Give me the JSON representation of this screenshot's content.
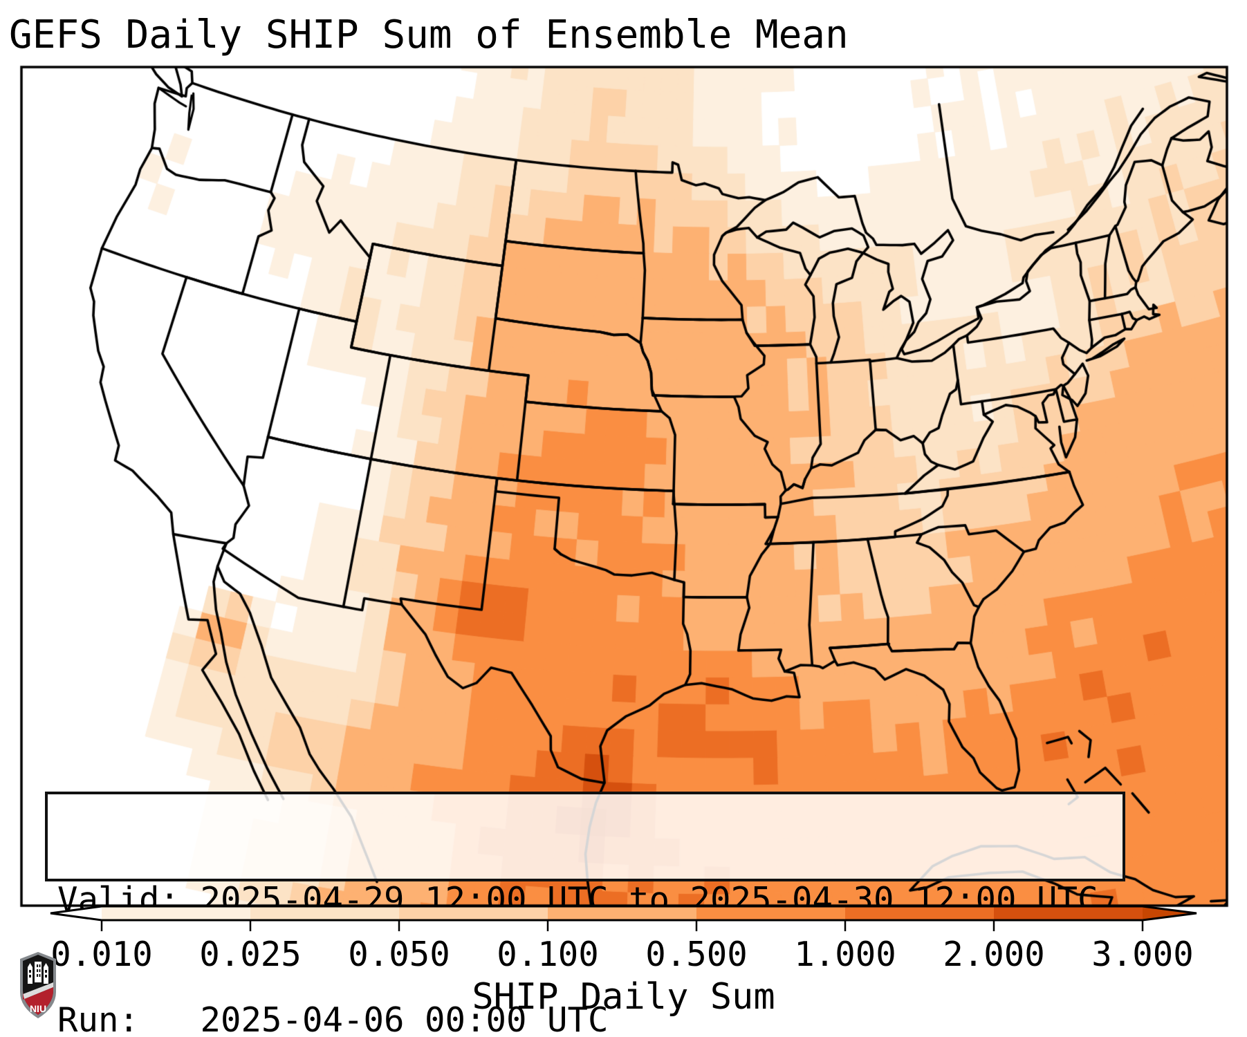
{
  "title": "GEFS Daily SHIP Sum of Ensemble Mean",
  "info_box": {
    "valid_line": "Valid: 2025-04-29 12:00 UTC to 2025-04-30 12:00 UTC",
    "run_line": "Run:   2025-04-06 00:00 UTC"
  },
  "colorbar": {
    "label": "SHIP Daily Sum",
    "tick_labels": [
      "0.010",
      "0.025",
      "0.050",
      "0.100",
      "0.500",
      "1.000",
      "2.000",
      "3.000"
    ],
    "levels": [
      0.01,
      0.025,
      0.05,
      0.1,
      0.5,
      1.0,
      2.0,
      3.0
    ],
    "segment_colors": [
      "#fdf0e0",
      "#fce3c6",
      "#fdd2a8",
      "#fdb172",
      "#fa8e42",
      "#ec6e24",
      "#d5500e"
    ],
    "under_color": "#ffffff",
    "over_color": "#c64602",
    "outline_color": "#000000"
  },
  "logo": {
    "text": "NIU",
    "red": "#b3202c",
    "black": "#151515",
    "grey": "#85898d"
  },
  "chart_data": {
    "type": "heatmap",
    "title": "GEFS Daily SHIP Sum of Ensemble Mean",
    "units": "SHIP Daily Sum",
    "legend_position": "bottom",
    "grid": {
      "lats": [
        24,
        26,
        28,
        30,
        32,
        34,
        36,
        38,
        40,
        42,
        44,
        46,
        48,
        50
      ],
      "lons": [
        -126,
        -123,
        -120,
        -117,
        -114,
        -111,
        -108,
        -105,
        -102,
        -99,
        -96,
        -93,
        -90,
        -87,
        -84,
        -81,
        -78,
        -75,
        -72,
        -69,
        -66,
        -63,
        -60
      ],
      "values": [
        [
          0,
          0,
          0,
          0,
          0,
          0.02,
          0.05,
          0.3,
          0.9,
          1.2,
          0.95,
          0.8,
          0.75,
          0.7,
          0.7,
          0.75,
          0.8,
          0.85,
          0.85,
          0.85,
          0.8,
          0.8,
          0.75
        ],
        [
          0,
          0,
          0,
          0,
          0.03,
          0.05,
          0.1,
          0.4,
          0.8,
          1.1,
          0.9,
          0.8,
          0.7,
          0.7,
          0.7,
          0.75,
          0.8,
          0.85,
          0.85,
          0.8,
          0.8,
          0.75,
          0.75
        ],
        [
          0,
          0,
          0,
          0,
          0.05,
          0.03,
          0.02,
          0.12,
          0.7,
          0.8,
          0.85,
          1.0,
          0.8,
          0.65,
          0.3,
          0.55,
          0.8,
          0.8,
          0.8,
          0.8,
          0.75,
          0.7,
          0.7
        ],
        [
          0,
          0,
          0,
          0,
          0.02,
          0.01,
          0.02,
          0.15,
          0.7,
          0.72,
          0.75,
          0.7,
          0.55,
          0.35,
          0.15,
          0.3,
          0.65,
          0.8,
          0.8,
          0.75,
          0.7,
          0.65,
          0.6
        ],
        [
          0,
          0,
          0,
          0,
          0,
          0.01,
          0.03,
          0.2,
          0.9,
          0.75,
          0.7,
          0.45,
          0.2,
          0.12,
          0.1,
          0.15,
          0.4,
          0.6,
          0.7,
          0.65,
          0.6,
          0.55,
          0.5
        ],
        [
          0,
          0,
          0,
          0,
          0,
          0.01,
          0.02,
          0.15,
          0.6,
          0.7,
          0.6,
          0.33,
          0.15,
          0.1,
          0.08,
          0.1,
          0.2,
          0.4,
          0.5,
          0.5,
          0.45,
          0.42,
          0.4
        ],
        [
          0,
          0,
          0,
          0,
          0,
          0,
          0.02,
          0.1,
          0.5,
          0.68,
          0.55,
          0.32,
          0.15,
          0.08,
          0.05,
          0.06,
          0.1,
          0.25,
          0.35,
          0.4,
          0.4,
          0.35,
          0.3
        ],
        [
          0,
          0,
          0,
          0,
          0,
          0,
          0.02,
          0.08,
          0.45,
          0.6,
          0.48,
          0.3,
          0.15,
          0.1,
          0.06,
          0.04,
          0.05,
          0.12,
          0.2,
          0.25,
          0.3,
          0.3,
          0.25
        ],
        [
          0,
          0,
          0,
          0,
          0,
          0.01,
          0.02,
          0.06,
          0.38,
          0.52,
          0.42,
          0.3,
          0.15,
          0.08,
          0.05,
          0.03,
          0.03,
          0.06,
          0.1,
          0.15,
          0.2,
          0.2,
          0.2
        ],
        [
          0,
          0,
          0,
          0,
          0.01,
          0.03,
          0.02,
          0.05,
          0.3,
          0.42,
          0.33,
          0.25,
          0.13,
          0.08,
          0.04,
          0.03,
          0.02,
          0.03,
          0.05,
          0.08,
          0.12,
          0.15,
          0.15
        ],
        [
          0,
          0.012,
          0,
          0.01,
          0.012,
          0.025,
          0.02,
          0.06,
          0.25,
          0.33,
          0.26,
          0.18,
          0.1,
          0.06,
          0.03,
          0.02,
          0.02,
          0.03,
          0.04,
          0.05,
          0.08,
          0.1,
          0.12
        ],
        [
          0,
          0.015,
          0,
          0.01,
          0.015,
          0.02,
          0.03,
          0.05,
          0.12,
          0.2,
          0.15,
          0.1,
          0.06,
          0.03,
          0.02,
          0.02,
          0.02,
          0.03,
          0.03,
          0.04,
          0.06,
          0.08,
          0.1
        ],
        [
          0,
          0,
          0,
          0,
          0.01,
          0.012,
          0.02,
          0.04,
          0.07,
          0.1,
          0.08,
          0.04,
          0.02,
          0.012,
          0.01,
          0.012,
          0.02,
          0.02,
          0.03,
          0.03,
          0.04,
          0.05,
          0.06
        ],
        [
          0,
          0,
          0,
          0,
          0,
          0,
          0.01,
          0.02,
          0.03,
          0.05,
          0.03,
          0.02,
          0.012,
          0.005,
          0.005,
          0.008,
          0.01,
          0.012,
          0.02,
          0.02,
          0.02,
          0.03,
          0.03
        ]
      ]
    },
    "hotspots": [
      {
        "lat": 32.2,
        "lon": -102.9,
        "amp": 1.5,
        "rlat": 1.3,
        "rlon": 1.6
      },
      {
        "lat": 24.7,
        "lon": -97.6,
        "amp": 2.0,
        "rlat": 1.8,
        "rlon": 2.2
      },
      {
        "lat": 27.8,
        "lon": -93.2,
        "amp": 0.5,
        "rlat": 1.5,
        "rlon": 2.5
      },
      {
        "lat": 29.6,
        "lon": -113.8,
        "amp": 0.18,
        "rlat": 0.9,
        "rlon": 0.9
      },
      {
        "lat": 34.0,
        "lon": -63.0,
        "amp": 0.25,
        "rlat": 4.0,
        "rlon": 6.0
      }
    ]
  }
}
